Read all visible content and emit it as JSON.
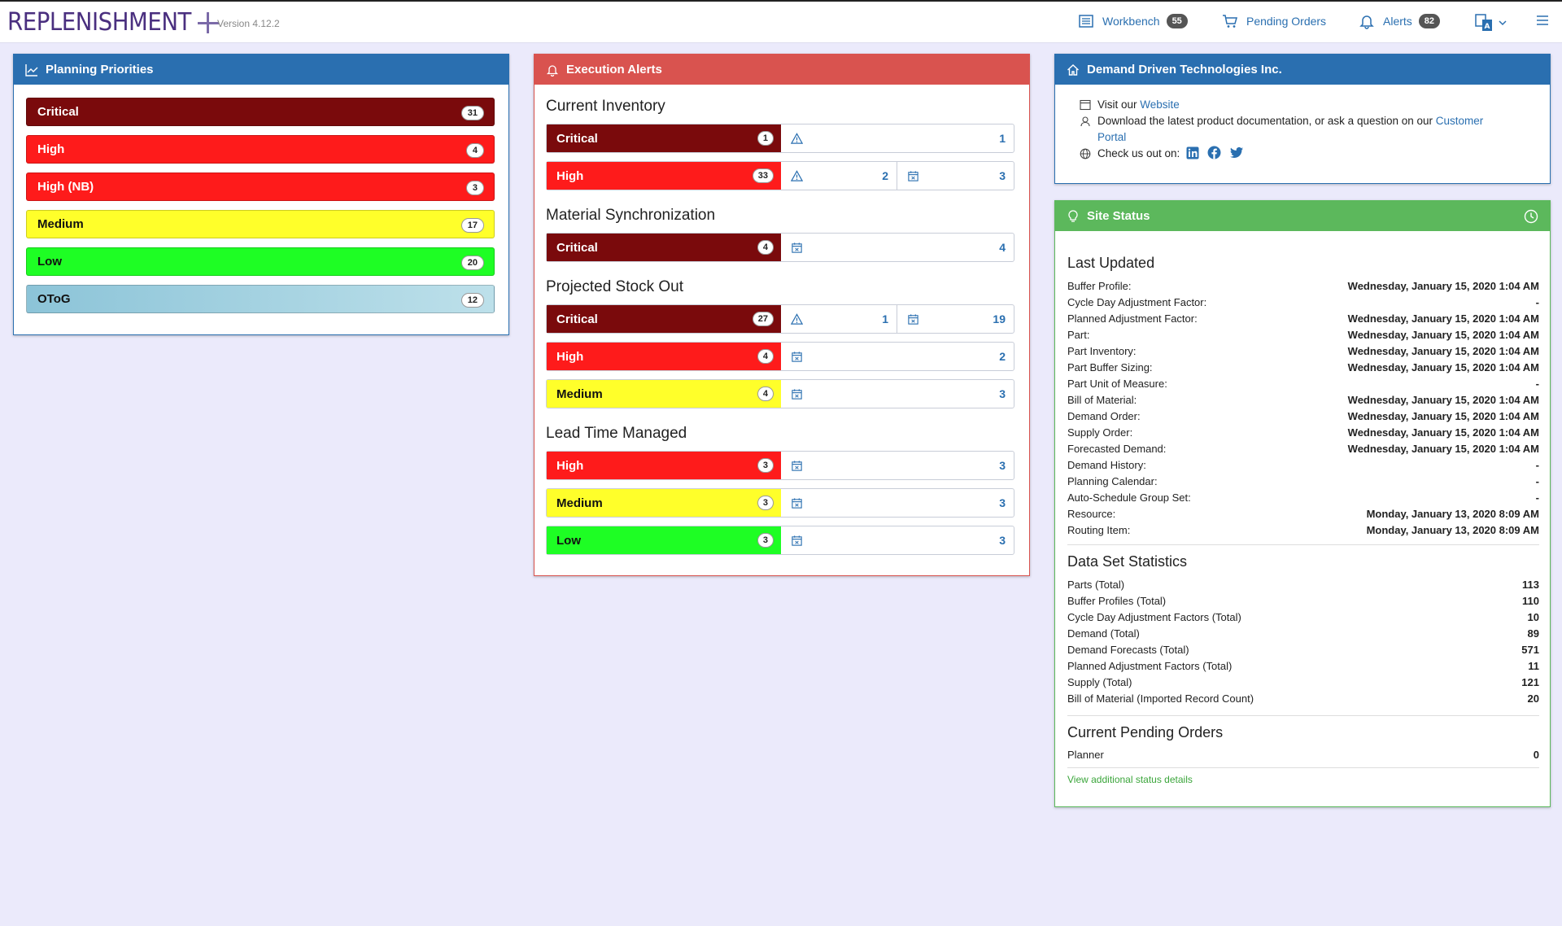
{
  "header": {
    "logo_text": "REPLENISHMENT",
    "version": "Version 4.12.2",
    "workbench_label": "Workbench",
    "workbench_count": "55",
    "pending_orders_label": "Pending Orders",
    "alerts_label": "Alerts",
    "alerts_count": "82"
  },
  "planning": {
    "title": "Planning Priorities",
    "items": [
      {
        "label": "Critical",
        "count": "31"
      },
      {
        "label": "High",
        "count": "4"
      },
      {
        "label": "High (NB)",
        "count": "3"
      },
      {
        "label": "Medium",
        "count": "17"
      },
      {
        "label": "Low",
        "count": "20"
      },
      {
        "label": "OToG",
        "count": "12"
      }
    ]
  },
  "alerts": {
    "title": "Execution Alerts",
    "sections": [
      {
        "title": "Current Inventory",
        "rows": [
          {
            "label": "Critical",
            "count": "1",
            "c1": "1"
          },
          {
            "label": "High",
            "count": "33",
            "c1": "2",
            "c2": "3"
          }
        ]
      },
      {
        "title": "Material Synchronization",
        "rows": [
          {
            "label": "Critical",
            "count": "4",
            "c1": "4"
          }
        ]
      },
      {
        "title": "Projected Stock Out",
        "rows": [
          {
            "label": "Critical",
            "count": "27",
            "c1": "1",
            "c2": "19"
          },
          {
            "label": "High",
            "count": "4",
            "c1": "2"
          },
          {
            "label": "Medium",
            "count": "4",
            "c1": "3"
          }
        ]
      },
      {
        "title": "Lead Time Managed",
        "rows": [
          {
            "label": "High",
            "count": "3",
            "c1": "3"
          },
          {
            "label": "Medium",
            "count": "3",
            "c1": "3"
          },
          {
            "label": "Low",
            "count": "3",
            "c1": "3"
          }
        ]
      }
    ]
  },
  "company": {
    "title": "Demand Driven Technologies Inc.",
    "visit_prefix": "Visit our",
    "website_link": "Website",
    "download_text": "Download the latest product documentation, or ask a question on our",
    "portal_link_1": "Customer",
    "portal_link_2": "Portal",
    "check_text": "Check us out on:"
  },
  "site_status": {
    "title": "Site Status",
    "last_updated_title": "Last Updated",
    "last_updated": [
      {
        "k": "Buffer Profile:",
        "v": "Wednesday, January 15, 2020 1:04 AM"
      },
      {
        "k": "Cycle Day Adjustment Factor:",
        "v": "-"
      },
      {
        "k": "Planned Adjustment Factor:",
        "v": "Wednesday, January 15, 2020 1:04 AM"
      },
      {
        "k": "Part:",
        "v": "Wednesday, January 15, 2020 1:04 AM"
      },
      {
        "k": "Part Inventory:",
        "v": "Wednesday, January 15, 2020 1:04 AM"
      },
      {
        "k": "Part Buffer Sizing:",
        "v": "Wednesday, January 15, 2020 1:04 AM"
      },
      {
        "k": "Part Unit of Measure:",
        "v": "-"
      },
      {
        "k": "Bill of Material:",
        "v": "Wednesday, January 15, 2020 1:04 AM"
      },
      {
        "k": "Demand Order:",
        "v": "Wednesday, January 15, 2020 1:04 AM"
      },
      {
        "k": "Supply Order:",
        "v": "Wednesday, January 15, 2020 1:04 AM"
      },
      {
        "k": "Forecasted Demand:",
        "v": "Wednesday, January 15, 2020 1:04 AM"
      },
      {
        "k": "Demand History:",
        "v": "-"
      },
      {
        "k": "Planning Calendar:",
        "v": "-"
      },
      {
        "k": "Auto-Schedule Group Set:",
        "v": "-"
      },
      {
        "k": "Resource:",
        "v": "Monday, January 13, 2020 8:09 AM"
      },
      {
        "k": "Routing Item:",
        "v": "Monday, January 13, 2020 8:09 AM"
      }
    ],
    "stats_title": "Data Set Statistics",
    "stats": [
      {
        "k": "Parts (Total)",
        "v": "113"
      },
      {
        "k": "Buffer Profiles (Total)",
        "v": "110"
      },
      {
        "k": "Cycle Day Adjustment Factors (Total)",
        "v": "10"
      },
      {
        "k": "Demand (Total)",
        "v": "89"
      },
      {
        "k": "Demand Forecasts (Total)",
        "v": "571"
      },
      {
        "k": "Planned Adjustment Factors (Total)",
        "v": "11"
      },
      {
        "k": "Supply (Total)",
        "v": "121"
      },
      {
        "k": "Bill of Material (Imported Record Count)",
        "v": "20"
      }
    ],
    "pending_title": "Current Pending Orders",
    "pending": [
      {
        "k": "Planner",
        "v": "0"
      }
    ],
    "details_link": "View additional status details"
  }
}
